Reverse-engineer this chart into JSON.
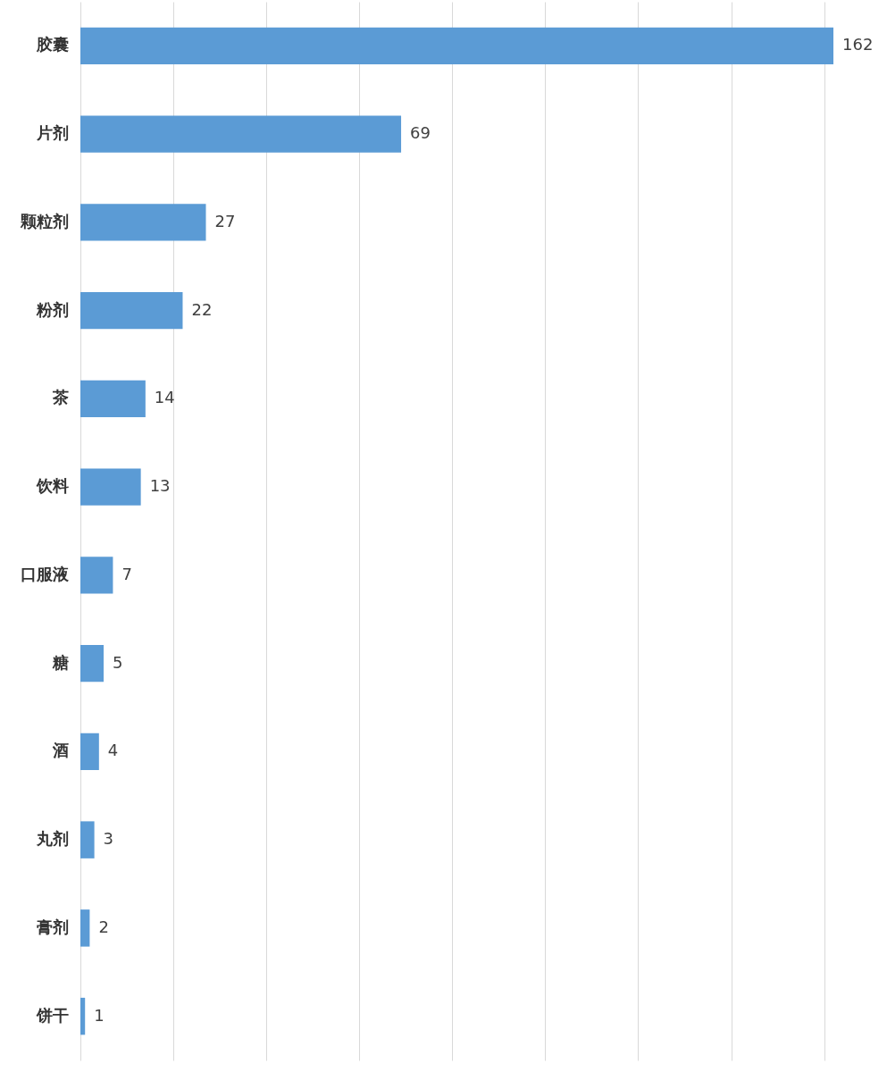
{
  "chart_data": {
    "type": "bar",
    "orientation": "horizontal",
    "categories": [
      "胶囊",
      "片剂",
      "颗粒剂",
      "粉剂",
      "茶",
      "饮料",
      "口服液",
      "糖",
      "酒",
      "丸剂",
      "膏剂",
      "饼干"
    ],
    "values": [
      162,
      69,
      27,
      22,
      14,
      13,
      7,
      5,
      4,
      3,
      2,
      1
    ],
    "color": "#5b9bd5",
    "xticks": [
      {
        "value": 0,
        "label": null
      },
      {
        "value": 20,
        "label": null
      },
      {
        "value": 40,
        "label": null
      },
      {
        "value": 60,
        "label": null
      },
      {
        "value": 80,
        "label": null
      },
      {
        "value": 100,
        "label": null
      },
      {
        "value": 120,
        "label": null
      },
      {
        "value": 140,
        "label": null
      },
      {
        "value": 160,
        "label": null
      }
    ],
    "grid": "x",
    "tick_labels": "y",
    "data_labels": true
  }
}
